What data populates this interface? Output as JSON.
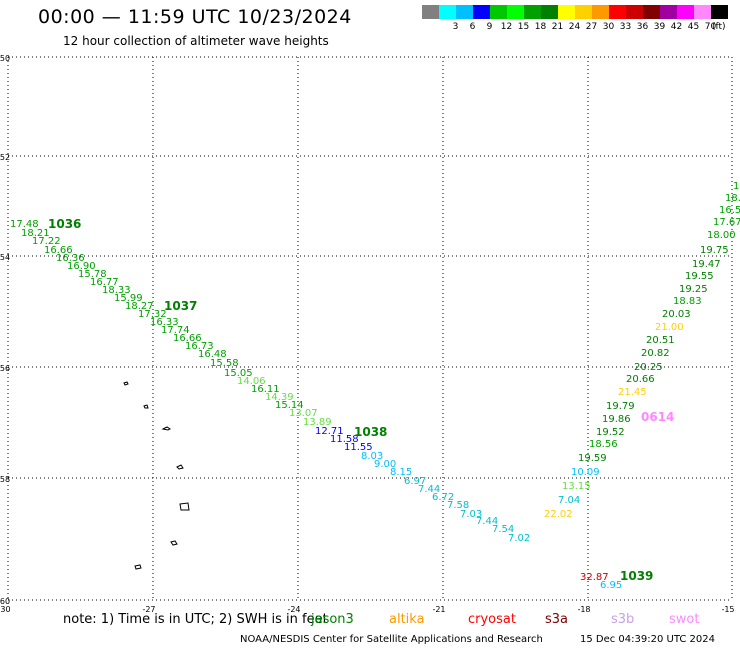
{
  "header": {
    "title": "00:00 — 11:59 UTC 10/23/2024",
    "subtitle": "12 hour collection of altimeter wave heights"
  },
  "colorbar": {
    "unit": "(ft)",
    "swatches": [
      {
        "color": "#808080",
        "label": ""
      },
      {
        "color": "#00ffff",
        "label": "3"
      },
      {
        "color": "#00bfff",
        "label": "6"
      },
      {
        "color": "#0000ff",
        "label": "9"
      },
      {
        "color": "#00c800",
        "label": "12"
      },
      {
        "color": "#00ff00",
        "label": "15"
      },
      {
        "color": "#00a000",
        "label": "18"
      },
      {
        "color": "#008000",
        "label": "21"
      },
      {
        "color": "#ffff00",
        "label": "24"
      },
      {
        "color": "#ffd000",
        "label": "27"
      },
      {
        "color": "#ff9900",
        "label": "30"
      },
      {
        "color": "#ff0000",
        "label": "33"
      },
      {
        "color": "#cc0000",
        "label": "36"
      },
      {
        "color": "#800000",
        "label": "39"
      },
      {
        "color": "#a000a0",
        "label": "42"
      },
      {
        "color": "#ff00ff",
        "label": "45"
      },
      {
        "color": "#ff88ff",
        "label": "70"
      },
      {
        "color": "#000000",
        "label": ""
      }
    ]
  },
  "map": {
    "lat_range": [
      -60,
      -50
    ],
    "lon_range": [
      -30,
      -15
    ],
    "lat_ticks": [
      "-50",
      "-52",
      "-54",
      "-56",
      "-58",
      "-60"
    ],
    "lon_ticks": [
      "-30",
      "-27",
      "-24",
      "-21",
      "-18",
      "-15"
    ],
    "pass_labels": [
      {
        "text": "1036",
        "color": "#008000"
      },
      {
        "text": "1037",
        "color": "#008000"
      },
      {
        "text": "1038",
        "color": "#008000"
      },
      {
        "text": "1039",
        "color": "#008000"
      },
      {
        "text": "0614",
        "color": "#ff88ff"
      }
    ],
    "track1_values": [
      "17.48",
      "18.21",
      "17.22",
      "16.66",
      "16.36",
      "16.90",
      "15.78",
      "16.77",
      "18.33",
      "15.99",
      "18.27",
      "17.32",
      "16.33",
      "17.74",
      "16.66",
      "16.73",
      "16.48",
      "15.58",
      "15.05",
      "14.06",
      "16.11",
      "14.39",
      "15.14",
      "13.07",
      "13.89",
      "12.71",
      "11.58",
      "11.55",
      "8.03",
      "9.00",
      "8.15",
      "6.97",
      "7.44",
      "6.72",
      "7.58",
      "7.03",
      "7.44",
      "7.54",
      "7.02"
    ],
    "track2_values": [
      "32.87",
      "6.95",
      "22.02",
      "7.04",
      "13.15",
      "10.09",
      "19.59",
      "18.56",
      "19.52",
      "19.86",
      "19.79",
      "21.45",
      "20.66",
      "20.25",
      "20.82",
      "20.51",
      "21.00",
      "20.03",
      "18.83",
      "19.25",
      "19.55",
      "19.47",
      "19.75",
      "18.00",
      "17.67",
      "16.5",
      "18.",
      "17."
    ]
  },
  "footer": {
    "note": "note:  1) Time is in UTC;  2) SWH is in feet",
    "missions": [
      {
        "name": "jason3",
        "color": "#008000"
      },
      {
        "name": "altika",
        "color": "#ff9900"
      },
      {
        "name": "cryosat",
        "color": "#ff0000"
      },
      {
        "name": "s3a",
        "color": "#800000"
      },
      {
        "name": "s3b",
        "color": "#c8a0e8"
      },
      {
        "name": "swot",
        "color": "#ff88ff"
      }
    ],
    "credit": "NOAA/NESDIS Center for Satellite Applications and Research",
    "generated": "15 Dec 04:39:20 UTC 2024"
  }
}
